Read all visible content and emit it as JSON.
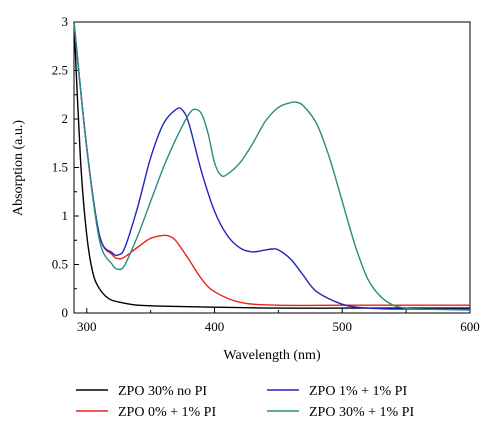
{
  "chart_data": {
    "type": "line",
    "title": "",
    "xlabel": "Wavelength (nm)",
    "ylabel": "Absorption (a.u.)",
    "xlim": [
      290,
      600
    ],
    "ylim": [
      0,
      3
    ],
    "x_ticks": [
      300,
      400,
      500,
      600
    ],
    "y_ticks": [
      0,
      0.5,
      1,
      1.5,
      2,
      2.5,
      3
    ],
    "x_tick_labels": [
      "300",
      "400",
      "500",
      "600"
    ],
    "y_tick_labels": [
      "0",
      "0.5",
      "1",
      "1.5",
      "2",
      "2.5",
      "3"
    ],
    "grid": false,
    "legend_position": "bottom",
    "series": [
      {
        "name": "ZPO 30% no PI",
        "color": "#000000",
        "x": [
          290,
          295,
          300,
          305,
          310,
          315,
          320,
          330,
          340,
          360,
          400,
          450,
          500,
          550,
          600
        ],
        "y": [
          3.0,
          1.6,
          0.8,
          0.4,
          0.25,
          0.17,
          0.13,
          0.1,
          0.08,
          0.07,
          0.06,
          0.05,
          0.05,
          0.05,
          0.05
        ]
      },
      {
        "name": "ZPO 0% + 1% PI",
        "color": "#e8231f",
        "x": [
          290,
          300,
          310,
          320,
          325,
          330,
          340,
          350,
          360,
          365,
          370,
          380,
          390,
          400,
          420,
          450,
          500,
          550,
          600
        ],
        "y": [
          3.0,
          1.7,
          0.8,
          0.6,
          0.56,
          0.58,
          0.68,
          0.77,
          0.8,
          0.79,
          0.74,
          0.55,
          0.35,
          0.22,
          0.11,
          0.08,
          0.08,
          0.08,
          0.08
        ]
      },
      {
        "name": "ZPO 1% + 1% PI",
        "color": "#2424b8",
        "x": [
          290,
          300,
          310,
          320,
          325,
          330,
          340,
          350,
          360,
          370,
          375,
          380,
          390,
          400,
          410,
          420,
          430,
          440,
          445,
          450,
          460,
          470,
          480,
          500,
          520,
          550,
          600
        ],
        "y": [
          3.0,
          1.7,
          0.8,
          0.62,
          0.6,
          0.68,
          1.1,
          1.6,
          1.95,
          2.1,
          2.09,
          1.95,
          1.45,
          1.05,
          0.8,
          0.67,
          0.63,
          0.65,
          0.66,
          0.65,
          0.55,
          0.38,
          0.22,
          0.09,
          0.05,
          0.04,
          0.04
        ]
      },
      {
        "name": "ZPO 30% + 1% PI",
        "color": "#2b8b83",
        "x": [
          290,
          300,
          310,
          320,
          325,
          330,
          340,
          350,
          360,
          370,
          380,
          385,
          390,
          395,
          400,
          405,
          410,
          420,
          430,
          440,
          450,
          460,
          465,
          470,
          480,
          490,
          500,
          510,
          520,
          530,
          540,
          550,
          560,
          600
        ],
        "y": [
          3.0,
          1.7,
          0.75,
          0.5,
          0.45,
          0.5,
          0.8,
          1.15,
          1.5,
          1.8,
          2.05,
          2.1,
          2.05,
          1.85,
          1.55,
          1.42,
          1.43,
          1.55,
          1.75,
          1.98,
          2.12,
          2.17,
          2.17,
          2.13,
          1.95,
          1.6,
          1.15,
          0.7,
          0.35,
          0.17,
          0.08,
          0.05,
          0.04,
          0.03
        ]
      }
    ]
  }
}
